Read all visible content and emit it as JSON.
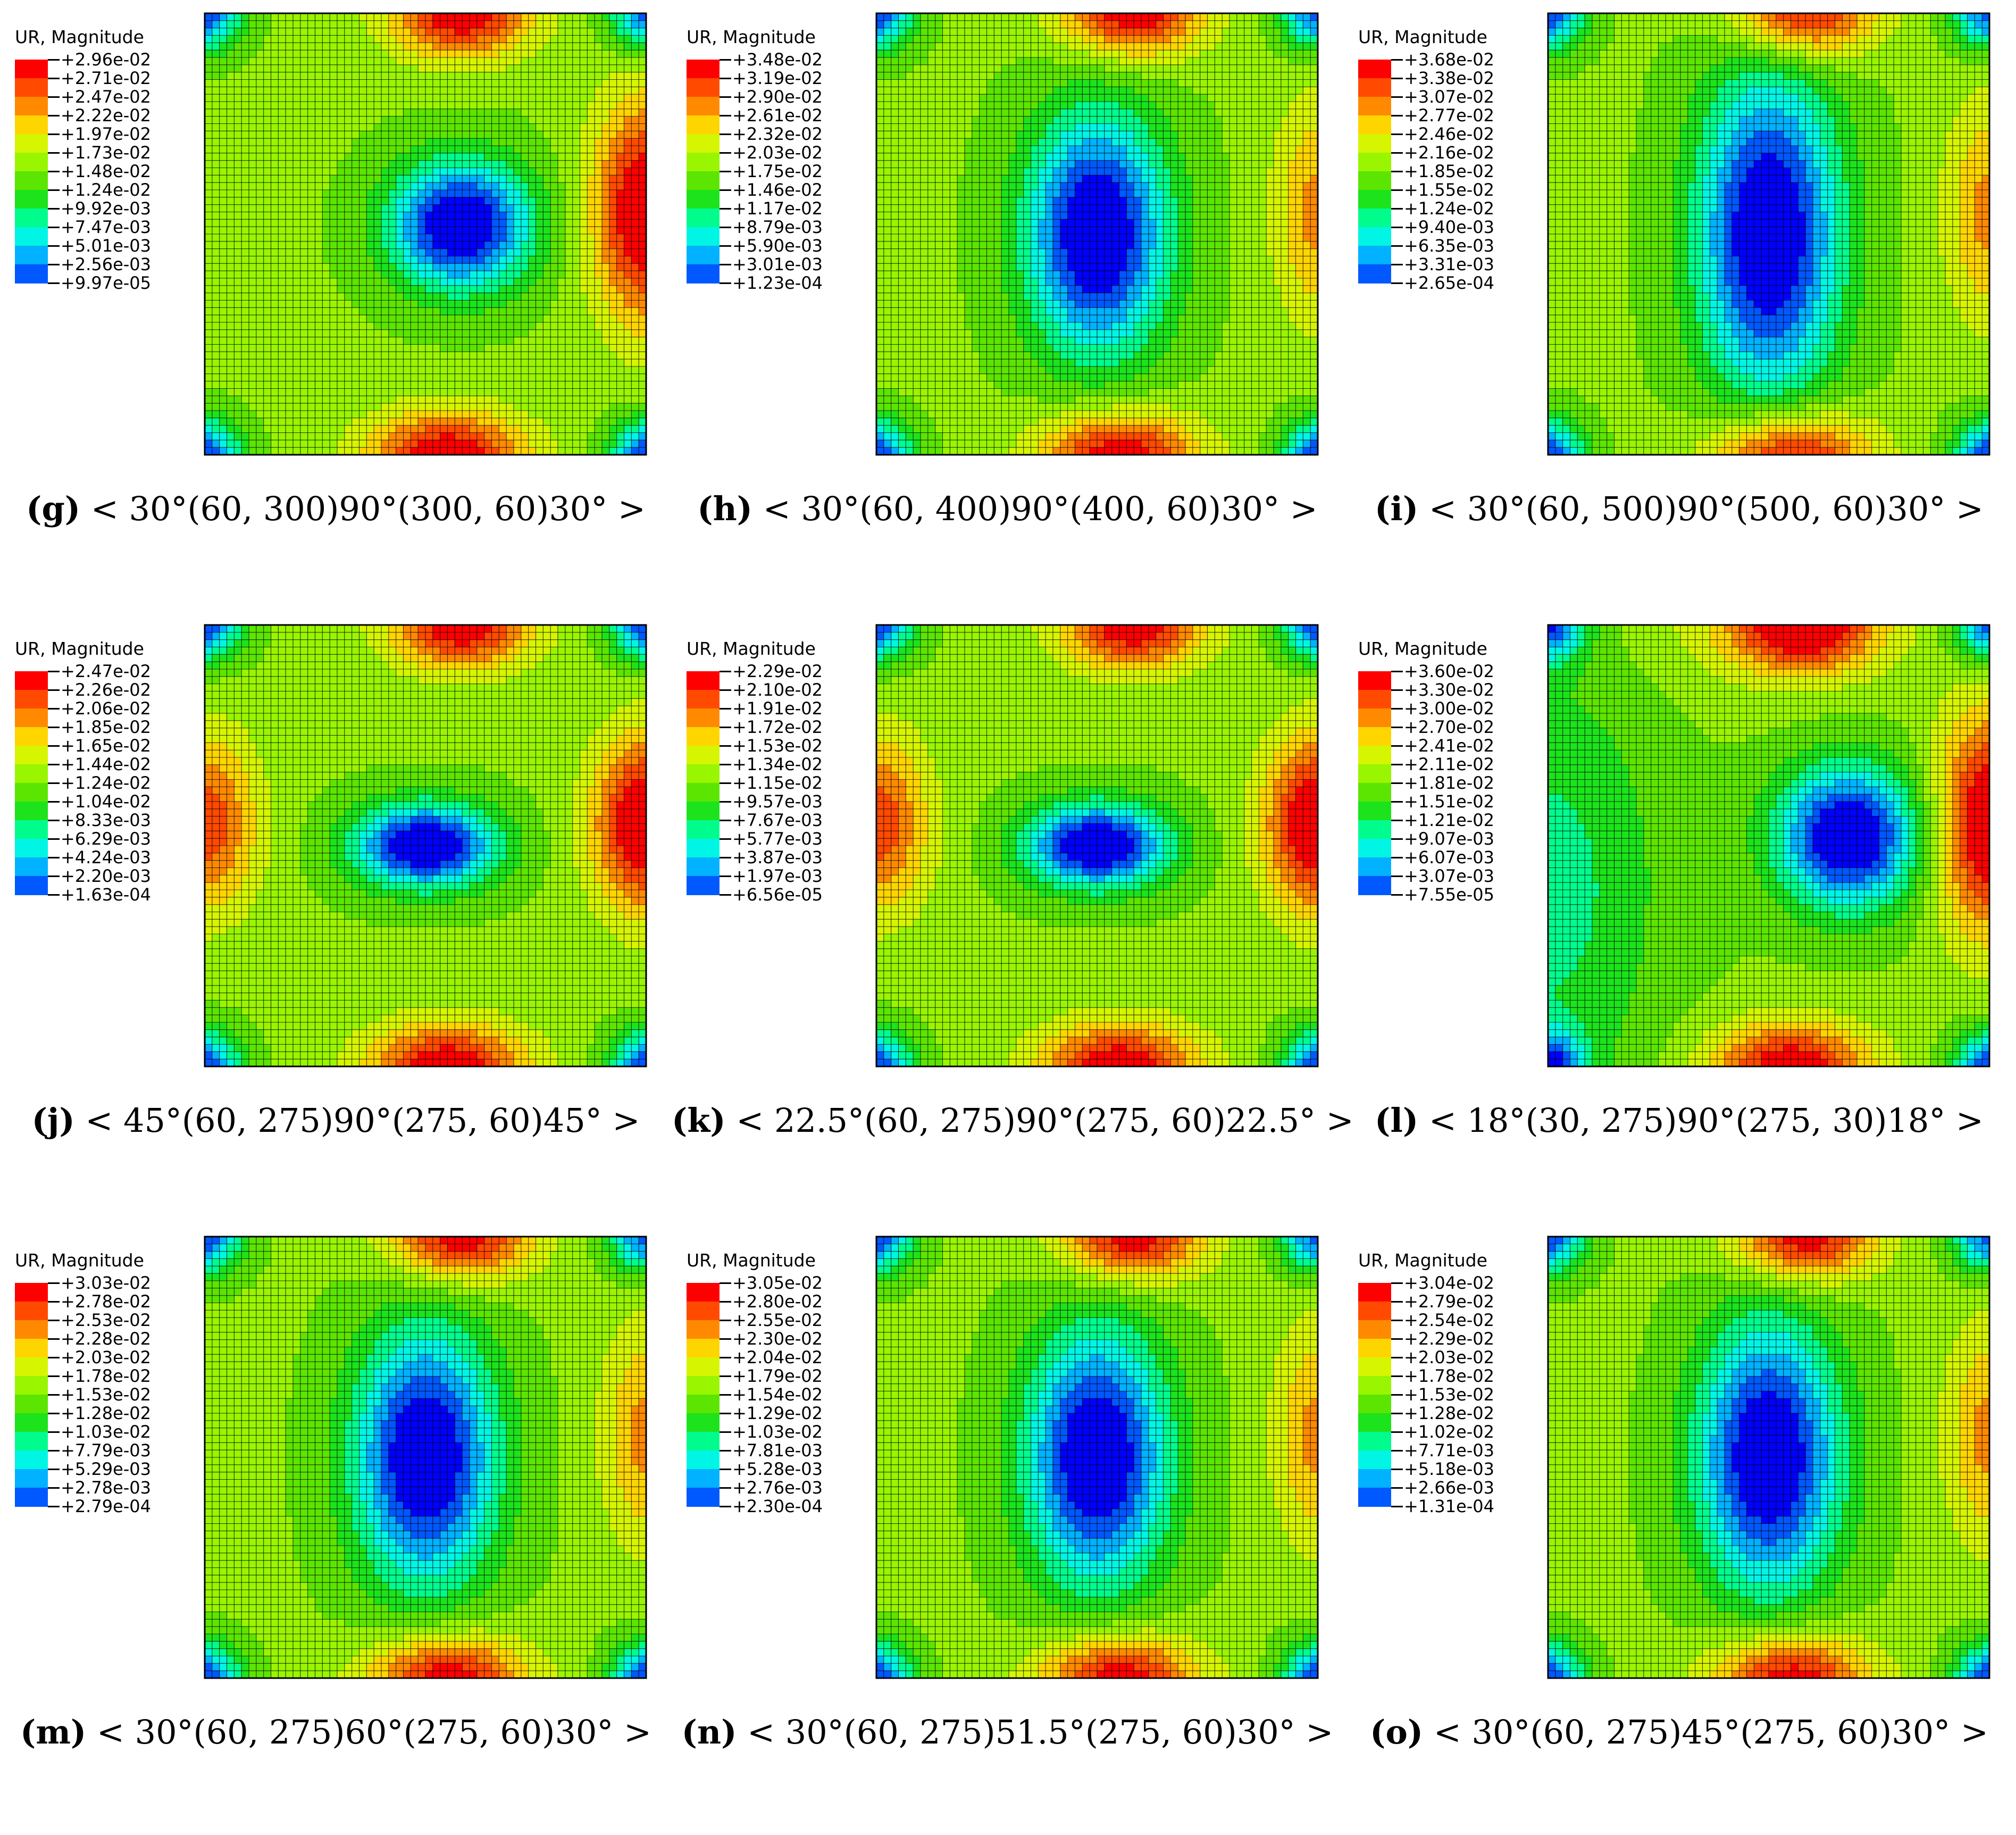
{
  "legend_title": "UR, Magnitude",
  "colors": [
    "#0000ff",
    "#0058ff",
    "#00b2ff",
    "#00f5e4",
    "#00fc8d",
    "#1ce31c",
    "#5ce500",
    "#99f500",
    "#d6f500",
    "#ffd500",
    "#ff8a00",
    "#ff4a00",
    "#ff0000"
  ],
  "panels": [
    {
      "letter": "(g)",
      "formula": "< 30°(60, 300)90°(300, 60)30° >",
      "legend": [
        "+2.96e-02",
        "+2.71e-02",
        "+2.47e-02",
        "+2.22e-02",
        "+1.97e-02",
        "+1.73e-02",
        "+1.48e-02",
        "+1.24e-02",
        "+9.92e-03",
        "+7.47e-03",
        "+5.01e-03",
        "+2.56e-03",
        "+9.97e-05"
      ],
      "pattern": "side-right",
      "min_elong": 0.9
    },
    {
      "letter": "(h)",
      "formula": "< 30°(60, 400)90°(400, 60)30° >",
      "legend": [
        "+3.48e-02",
        "+3.19e-02",
        "+2.90e-02",
        "+2.61e-02",
        "+2.32e-02",
        "+2.03e-02",
        "+1.75e-02",
        "+1.46e-02",
        "+1.17e-02",
        "+8.79e-03",
        "+5.90e-03",
        "+3.01e-03",
        "+1.23e-04"
      ],
      "pattern": "vertical",
      "min_elong": 1.7
    },
    {
      "letter": "(i)",
      "formula": "< 30°(60, 500)90°(500, 60)30° >",
      "legend": [
        "+3.68e-02",
        "+3.38e-02",
        "+3.07e-02",
        "+2.77e-02",
        "+2.46e-02",
        "+2.16e-02",
        "+1.85e-02",
        "+1.55e-02",
        "+1.24e-02",
        "+9.40e-03",
        "+6.35e-03",
        "+3.31e-03",
        "+2.65e-04"
      ],
      "pattern": "vertical",
      "min_elong": 2.3
    },
    {
      "letter": "(j)",
      "formula": "< 45°(60, 275)90°(275, 60)45° >",
      "legend": [
        "+2.47e-02",
        "+2.26e-02",
        "+2.06e-02",
        "+1.85e-02",
        "+1.65e-02",
        "+1.44e-02",
        "+1.24e-02",
        "+1.04e-02",
        "+8.33e-03",
        "+6.29e-03",
        "+4.24e-03",
        "+2.20e-03",
        "+1.63e-04"
      ],
      "pattern": "four-side",
      "min_elong": 0.6
    },
    {
      "letter": "(k)",
      "formula": "< 22.5°(60, 275)90°(275, 60)22.5° >",
      "legend": [
        "+2.29e-02",
        "+2.10e-02",
        "+1.91e-02",
        "+1.72e-02",
        "+1.53e-02",
        "+1.34e-02",
        "+1.15e-02",
        "+9.57e-03",
        "+7.67e-03",
        "+5.77e-03",
        "+3.87e-03",
        "+1.97e-03",
        "+6.56e-05"
      ],
      "pattern": "four-side",
      "min_elong": 0.6
    },
    {
      "letter": "(l)",
      "formula": "< 18°(30, 275)90°(275, 30)18° >",
      "legend": [
        "+3.60e-02",
        "+3.30e-02",
        "+3.00e-02",
        "+2.70e-02",
        "+2.41e-02",
        "+2.11e-02",
        "+1.81e-02",
        "+1.51e-02",
        "+1.21e-02",
        "+9.07e-03",
        "+6.07e-03",
        "+3.07e-03",
        "+7.55e-05"
      ],
      "pattern": "right-shift",
      "min_elong": 1.0
    },
    {
      "letter": "(m)",
      "formula": "< 30°(60, 275)60°(275, 60)30° >",
      "legend": [
        "+3.03e-02",
        "+2.78e-02",
        "+2.53e-02",
        "+2.28e-02",
        "+2.03e-02",
        "+1.78e-02",
        "+1.53e-02",
        "+1.28e-02",
        "+1.03e-02",
        "+7.79e-03",
        "+5.29e-03",
        "+2.78e-03",
        "+2.79e-04"
      ],
      "pattern": "vertical",
      "min_elong": 1.8
    },
    {
      "letter": "(n)",
      "formula": "< 30°(60, 275)51.5°(275, 60)30° >",
      "legend": [
        "+3.05e-02",
        "+2.80e-02",
        "+2.55e-02",
        "+2.30e-02",
        "+2.04e-02",
        "+1.79e-02",
        "+1.54e-02",
        "+1.29e-02",
        "+1.03e-02",
        "+7.81e-03",
        "+5.28e-03",
        "+2.76e-03",
        "+2.30e-04"
      ],
      "pattern": "vertical",
      "min_elong": 1.8
    },
    {
      "letter": "(o)",
      "formula": "< 30°(60, 275)45°(275, 60)30° >",
      "legend": [
        "+3.04e-02",
        "+2.79e-02",
        "+2.54e-02",
        "+2.29e-02",
        "+2.03e-02",
        "+1.78e-02",
        "+1.53e-02",
        "+1.28e-02",
        "+1.02e-02",
        "+7.71e-03",
        "+5.18e-03",
        "+2.66e-03",
        "+1.31e-04"
      ],
      "pattern": "vertical",
      "min_elong": 1.9
    }
  ]
}
